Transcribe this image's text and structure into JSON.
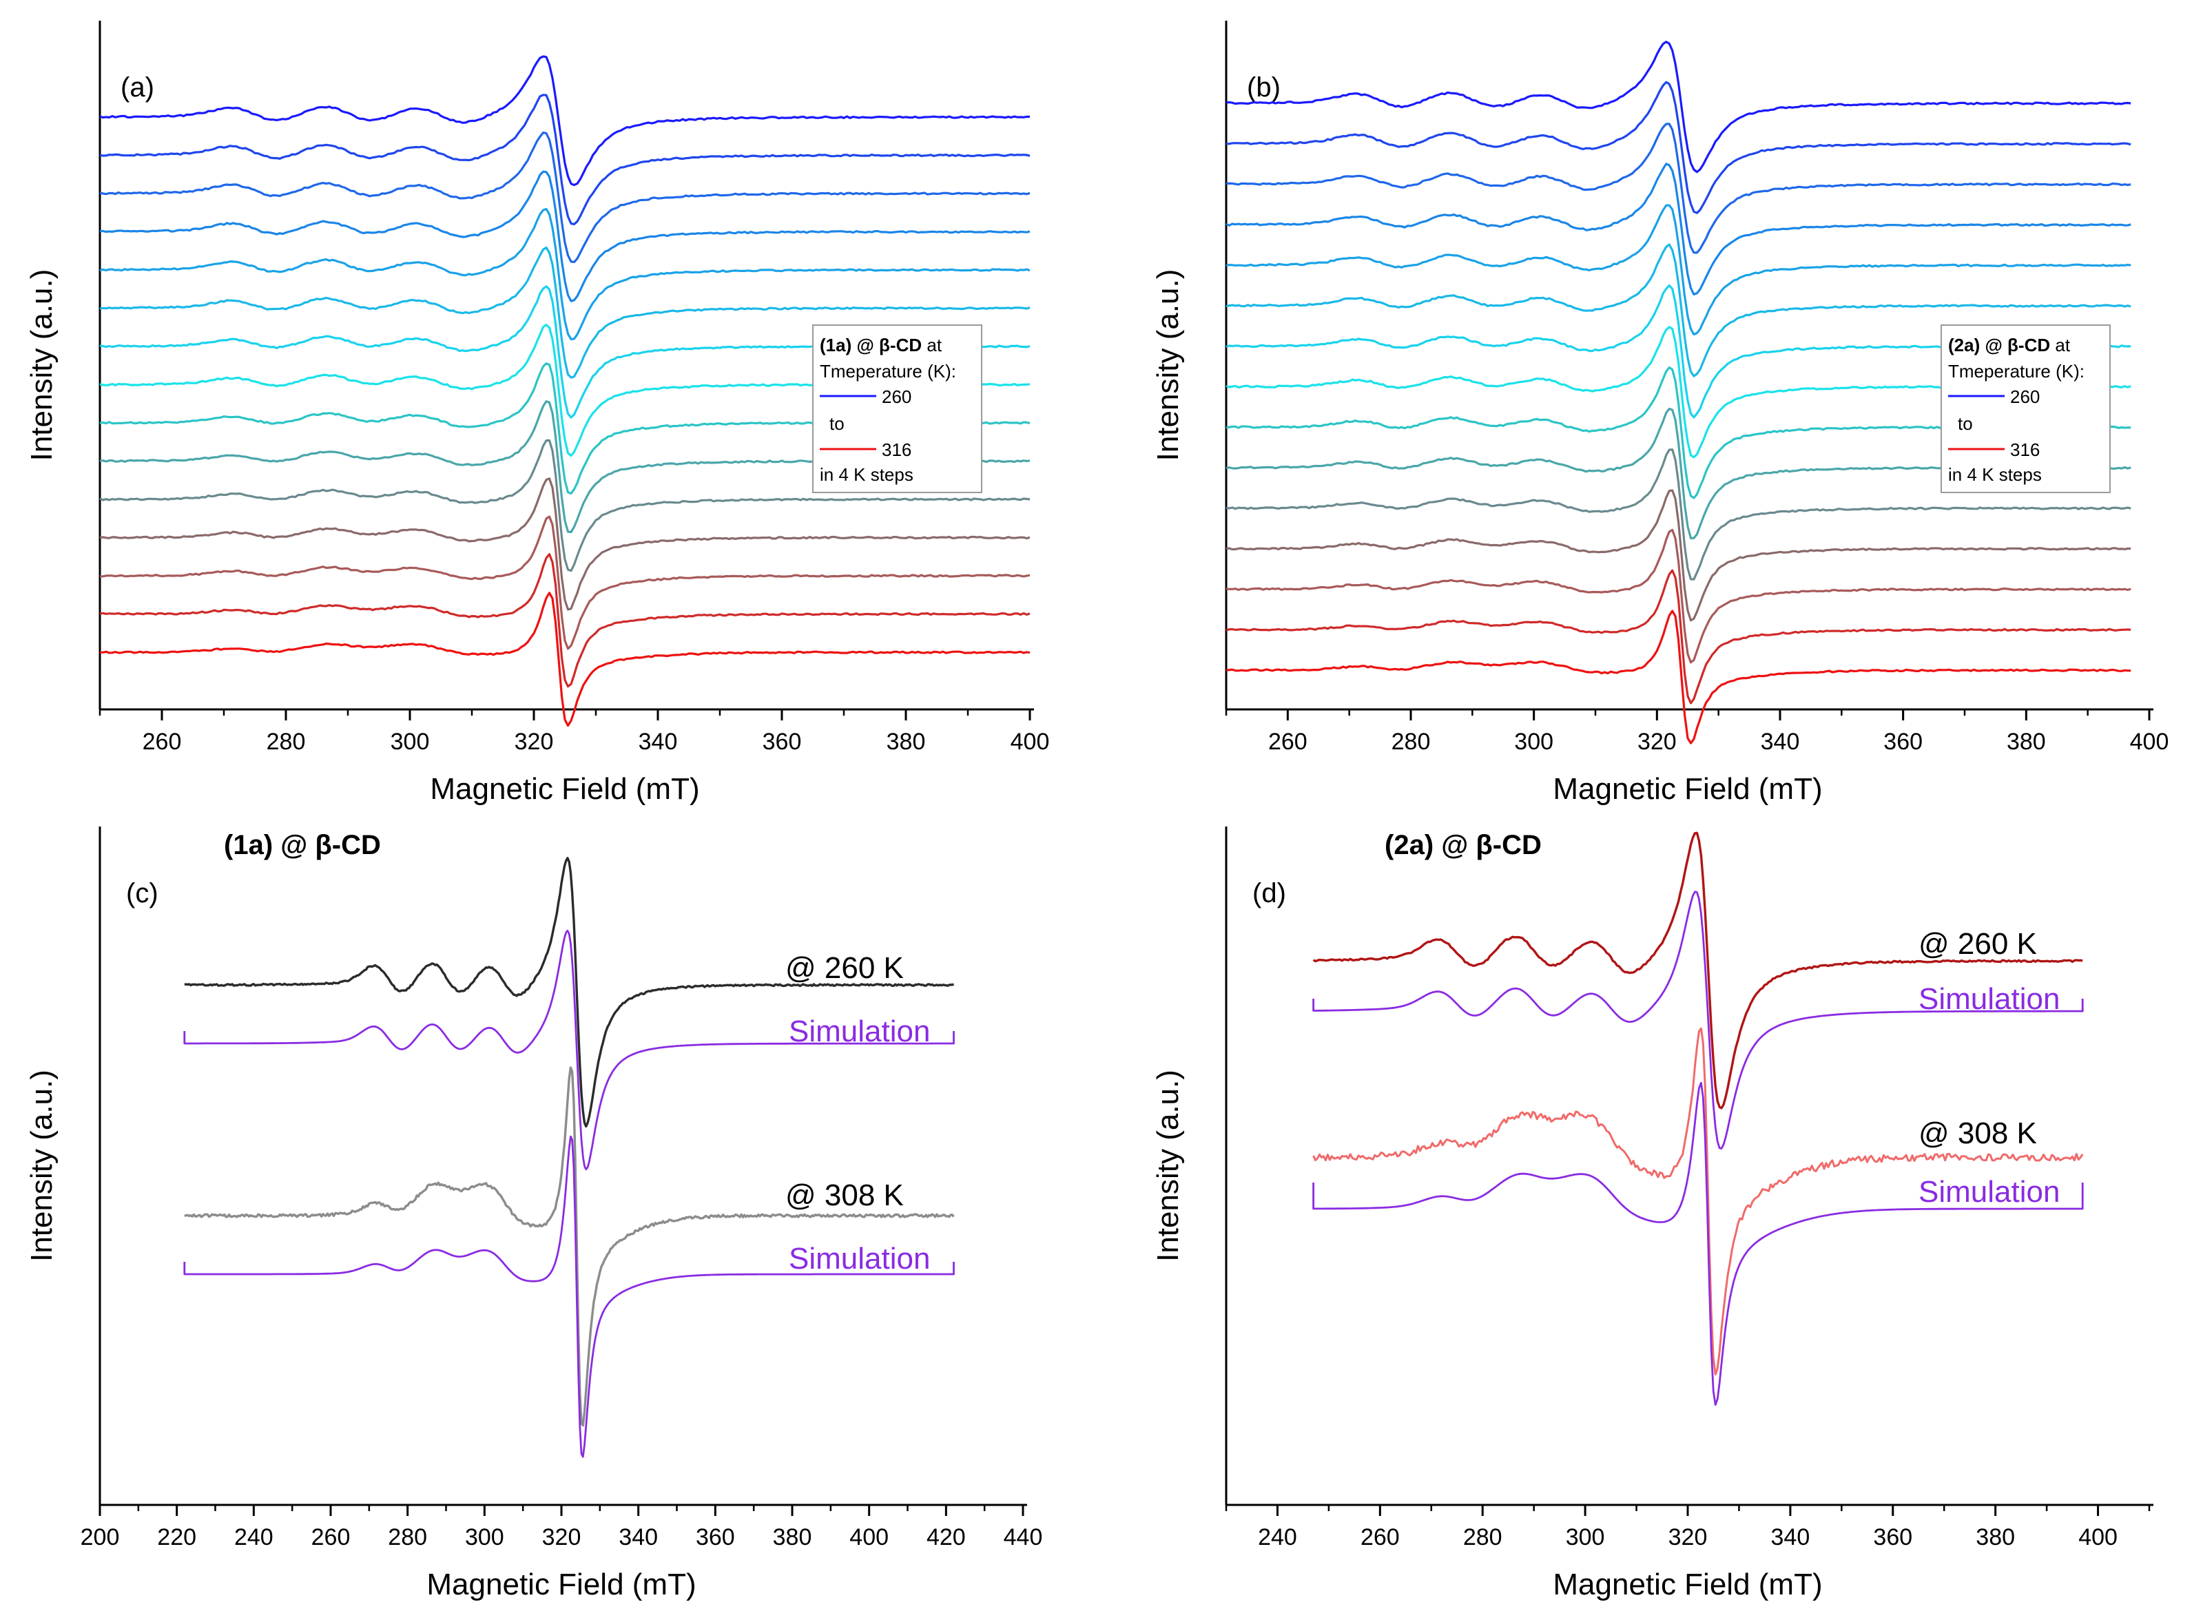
{
  "figure": {
    "panel_count": 4
  },
  "chart_data": [
    {
      "id": "a",
      "type": "line",
      "panel_label": "(a)",
      "title": "",
      "xlabel": "Magnetic Field (mT)",
      "ylabel": "Intensity (a.u.)",
      "xlim": [
        250,
        400
      ],
      "xticks": [
        260,
        280,
        300,
        320,
        340,
        360,
        380,
        400
      ],
      "legend": {
        "position": "right-center",
        "compound": "(1a)",
        "host": " @ β-CD",
        "line1_suffix": " at",
        "line2": "Tmeperature (K):",
        "start_label": "260",
        "to_label": "to",
        "end_label": "316",
        "steps_label": "in 4 K steps"
      },
      "series_temperatures_K": [
        260,
        264,
        268,
        272,
        276,
        280,
        284,
        288,
        292,
        296,
        300,
        304,
        308,
        312,
        316
      ],
      "series_colors": [
        "#1a1aff",
        "#1f46ee",
        "#1f68ea",
        "#1a86e8",
        "#1aa2e8",
        "#1ab8e8",
        "#1ad2ee",
        "#1ae2ea",
        "#2cc4c6",
        "#4aa6aa",
        "#6a8a8e",
        "#8a6a6a",
        "#a85a5a",
        "#d02a2a",
        "#ee1111"
      ],
      "spectral_features": {
        "g_perp_zero_crossing_mT": 324,
        "low_temp_minimum_mT": 330,
        "high_temp_minimum_mT": 325,
        "parallel_hyperfine_peaks_mT": [
          275,
          290,
          305
        ]
      }
    },
    {
      "id": "b",
      "type": "line",
      "panel_label": "(b)",
      "title": "",
      "xlabel": "Magnetic Field (mT)",
      "ylabel": "Intensity (a.u.)",
      "xlim": [
        250,
        400
      ],
      "xticks": [
        260,
        280,
        300,
        320,
        340,
        360,
        380,
        400
      ],
      "legend": {
        "position": "right-center",
        "compound": "(2a)",
        "host": " @ β-CD",
        "line1_suffix": " at",
        "line2": "Tmeperature (K):",
        "start_label": "260",
        "to_label": "to",
        "end_label": "316",
        "steps_label": "in 4 K steps"
      },
      "series_temperatures_K": [
        260,
        264,
        268,
        272,
        276,
        280,
        284,
        288,
        292,
        296,
        300,
        304,
        308,
        312,
        316
      ],
      "series_colors": [
        "#1a1aff",
        "#1f46ee",
        "#1f68ea",
        "#1a86e8",
        "#1aa2e8",
        "#1ab8e8",
        "#1ad2ee",
        "#1ae2ea",
        "#2cc4c6",
        "#4aa6aa",
        "#6a8a8e",
        "#8a6a6a",
        "#a85a5a",
        "#d02a2a",
        "#ee1111"
      ],
      "spectral_features": {
        "g_perp_zero_crossing_mT": 324,
        "low_temp_minimum_mT": 329,
        "high_temp_minimum_mT": 325,
        "parallel_hyperfine_peaks_mT": [
          274,
          288,
          302
        ]
      }
    },
    {
      "id": "c",
      "type": "line",
      "panel_label": "(c)",
      "title_compound": "(1a)",
      "title_rest": " @ β-CD",
      "xlabel": "Magnetic Field (mT)",
      "ylabel": "Intensity (a.u.)",
      "xlim": [
        200,
        440
      ],
      "xticks": [
        200,
        220,
        240,
        260,
        280,
        300,
        320,
        340,
        360,
        380,
        400,
        420,
        440
      ],
      "annotations": [
        "@ 260 K",
        "Simulation",
        "@ 308 K",
        "Simulation"
      ],
      "series": [
        {
          "name": "@ 260 K",
          "color": "#2b2b2b",
          "field_range_mT": [
            222,
            422
          ]
        },
        {
          "name": "Simulation (260 K)",
          "color": "#8a2be2",
          "field_range_mT": [
            222,
            422
          ]
        },
        {
          "name": "@ 308 K",
          "color": "#8c8c8c",
          "field_range_mT": [
            222,
            422
          ]
        },
        {
          "name": "Simulation (308 K)",
          "color": "#8a2be2",
          "field_range_mT": [
            222,
            422
          ]
        }
      ]
    },
    {
      "id": "d",
      "type": "line",
      "panel_label": "(d)",
      "title_compound": "(2a)",
      "title_rest": " @ β-CD",
      "xlabel": "Magnetic Field (mT)",
      "ylabel": "Intensity (a.u.)",
      "xlim": [
        230,
        410
      ],
      "xticks": [
        240,
        260,
        280,
        300,
        320,
        340,
        360,
        380,
        400
      ],
      "annotations": [
        "@ 260 K",
        "Simulation",
        "@ 308 K",
        "Simulation"
      ],
      "series": [
        {
          "name": "@ 260 K",
          "color": "#b01515",
          "field_range_mT": [
            247,
            397
          ]
        },
        {
          "name": "Simulation (260 K)",
          "color": "#8a2be2",
          "field_range_mT": [
            247,
            397
          ]
        },
        {
          "name": "@ 308 K",
          "color": "#f06a6a",
          "field_range_mT": [
            247,
            397
          ]
        },
        {
          "name": "Simulation (308 K)",
          "color": "#8a2be2",
          "field_range_mT": [
            247,
            397
          ]
        }
      ]
    }
  ]
}
